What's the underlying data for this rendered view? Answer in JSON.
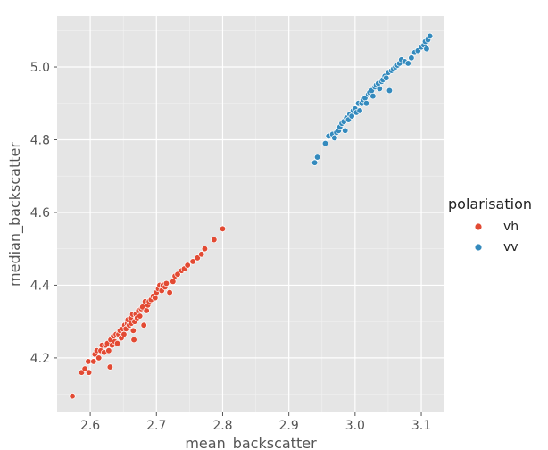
{
  "chart_data": {
    "type": "scatter",
    "xlabel": "mean_backscatter",
    "ylabel": "median_backscatter",
    "xlim": [
      2.55,
      3.135
    ],
    "ylim": [
      4.05,
      5.14
    ],
    "xticks": [
      2.6,
      2.7,
      2.8,
      2.9,
      3.0,
      3.1
    ],
    "yticks": [
      4.2,
      4.4,
      4.6,
      4.8,
      5.0
    ],
    "xtick_labels": [
      "2.6",
      "2.7",
      "2.8",
      "2.9",
      "3.0",
      "3.1"
    ],
    "ytick_labels": [
      "4.2",
      "4.4",
      "4.6",
      "4.8",
      "5.0"
    ],
    "grid": true,
    "legend_placement": "right",
    "legend": {
      "title": "polarisation",
      "items": [
        {
          "label": "vh",
          "color": "#E24A33"
        },
        {
          "label": "vv",
          "color": "#348ABD"
        }
      ]
    },
    "series": [
      {
        "name": "vh",
        "color": "#E24A33",
        "points": [
          [
            2.573,
            4.095
          ],
          [
            2.587,
            4.16
          ],
          [
            2.592,
            4.17
          ],
          [
            2.597,
            4.19
          ],
          [
            2.598,
            4.16
          ],
          [
            2.605,
            4.19
          ],
          [
            2.607,
            4.21
          ],
          [
            2.61,
            4.22
          ],
          [
            2.613,
            4.2
          ],
          [
            2.616,
            4.22
          ],
          [
            2.618,
            4.235
          ],
          [
            2.621,
            4.215
          ],
          [
            2.623,
            4.235
          ],
          [
            2.626,
            4.24
          ],
          [
            2.628,
            4.22
          ],
          [
            2.63,
            4.175
          ],
          [
            2.631,
            4.25
          ],
          [
            2.633,
            4.235
          ],
          [
            2.635,
            4.26
          ],
          [
            2.637,
            4.245
          ],
          [
            2.639,
            4.265
          ],
          [
            2.641,
            4.24
          ],
          [
            2.643,
            4.265
          ],
          [
            2.645,
            4.275
          ],
          [
            2.647,
            4.255
          ],
          [
            2.649,
            4.28
          ],
          [
            2.651,
            4.265
          ],
          [
            2.652,
            4.29
          ],
          [
            2.654,
            4.28
          ],
          [
            2.656,
            4.295
          ],
          [
            2.657,
            4.305
          ],
          [
            2.659,
            4.29
          ],
          [
            2.661,
            4.31
          ],
          [
            2.662,
            4.295
          ],
          [
            2.664,
            4.32
          ],
          [
            2.665,
            4.275
          ],
          [
            2.666,
            4.25
          ],
          [
            2.667,
            4.3
          ],
          [
            2.669,
            4.32
          ],
          [
            2.671,
            4.31
          ],
          [
            2.673,
            4.33
          ],
          [
            2.675,
            4.315
          ],
          [
            2.677,
            4.335
          ],
          [
            2.679,
            4.34
          ],
          [
            2.681,
            4.29
          ],
          [
            2.683,
            4.355
          ],
          [
            2.685,
            4.33
          ],
          [
            2.687,
            4.345
          ],
          [
            2.689,
            4.355
          ],
          [
            2.692,
            4.36
          ],
          [
            2.695,
            4.37
          ],
          [
            2.698,
            4.365
          ],
          [
            2.7,
            4.38
          ],
          [
            2.703,
            4.39
          ],
          [
            2.705,
            4.4
          ],
          [
            2.708,
            4.385
          ],
          [
            2.71,
            4.4
          ],
          [
            2.713,
            4.395
          ],
          [
            2.715,
            4.405
          ],
          [
            2.72,
            4.38
          ],
          [
            2.725,
            4.41
          ],
          [
            2.728,
            4.425
          ],
          [
            2.732,
            4.43
          ],
          [
            2.738,
            4.44
          ],
          [
            2.742,
            4.445
          ],
          [
            2.747,
            4.455
          ],
          [
            2.755,
            4.465
          ],
          [
            2.762,
            4.475
          ],
          [
            2.768,
            4.485
          ],
          [
            2.773,
            4.5
          ],
          [
            2.787,
            4.525
          ],
          [
            2.8,
            4.555
          ]
        ]
      },
      {
        "name": "vv",
        "color": "#348ABD",
        "points": [
          [
            2.939,
            4.737
          ],
          [
            2.943,
            4.752
          ],
          [
            2.955,
            4.79
          ],
          [
            2.96,
            4.81
          ],
          [
            2.966,
            4.815
          ],
          [
            2.969,
            4.805
          ],
          [
            2.972,
            4.82
          ],
          [
            2.975,
            4.825
          ],
          [
            2.977,
            4.835
          ],
          [
            2.98,
            4.845
          ],
          [
            2.983,
            4.85
          ],
          [
            2.985,
            4.825
          ],
          [
            2.987,
            4.86
          ],
          [
            2.99,
            4.855
          ],
          [
            2.992,
            4.87
          ],
          [
            2.995,
            4.865
          ],
          [
            2.997,
            4.88
          ],
          [
            3.0,
            4.885
          ],
          [
            3.002,
            4.875
          ],
          [
            3.005,
            4.9
          ],
          [
            3.007,
            4.88
          ],
          [
            3.01,
            4.9
          ],
          [
            3.012,
            4.91
          ],
          [
            3.015,
            4.915
          ],
          [
            3.017,
            4.9
          ],
          [
            3.02,
            4.925
          ],
          [
            3.022,
            4.93
          ],
          [
            3.025,
            4.935
          ],
          [
            3.027,
            4.92
          ],
          [
            3.03,
            4.945
          ],
          [
            3.032,
            4.95
          ],
          [
            3.035,
            4.955
          ],
          [
            3.037,
            4.94
          ],
          [
            3.04,
            4.96
          ],
          [
            3.042,
            4.965
          ],
          [
            3.045,
            4.975
          ],
          [
            3.047,
            4.97
          ],
          [
            3.05,
            4.985
          ],
          [
            3.052,
            4.935
          ],
          [
            3.055,
            4.99
          ],
          [
            3.058,
            4.995
          ],
          [
            3.061,
            5.0
          ],
          [
            3.064,
            5.005
          ],
          [
            3.067,
            5.01
          ],
          [
            3.07,
            5.02
          ],
          [
            3.075,
            5.015
          ],
          [
            3.08,
            5.01
          ],
          [
            3.085,
            5.025
          ],
          [
            3.09,
            5.04
          ],
          [
            3.095,
            5.045
          ],
          [
            3.1,
            5.055
          ],
          [
            3.104,
            5.06
          ],
          [
            3.106,
            5.07
          ],
          [
            3.108,
            5.05
          ],
          [
            3.11,
            5.075
          ],
          [
            3.113,
            5.085
          ]
        ]
      }
    ]
  }
}
